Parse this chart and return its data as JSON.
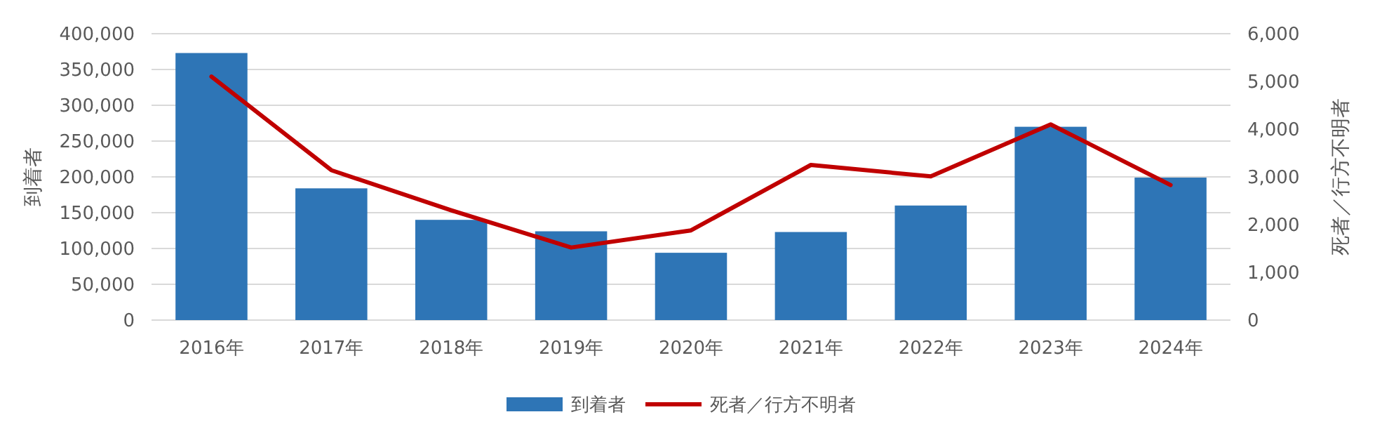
{
  "chart_data": {
    "type": "bar",
    "ylabel": "到着者",
    "y2label": "死者／行方不明者",
    "categories": [
      "2016年",
      "2017年",
      "2018年",
      "2019年",
      "2020年",
      "2021年",
      "2022年",
      "2023年",
      "2024年"
    ],
    "series": [
      {
        "name": "到着者",
        "color": "#2e75b6",
        "values": [
          373000,
          184000,
          140000,
          124000,
          94000,
          123000,
          160000,
          270000,
          199000
        ]
      },
      {
        "name": "死者／行方不明者",
        "type": "line",
        "axis": "y2",
        "color": "#c00000",
        "values": [
          5100,
          3140,
          2300,
          1520,
          1880,
          3250,
          3010,
          4100,
          2830
        ]
      }
    ],
    "ylim": [
      0,
      400000
    ],
    "yticks": [
      {
        "value": 0,
        "label": "0"
      },
      {
        "value": 50000,
        "label": "50,000"
      },
      {
        "value": 100000,
        "label": "100,000"
      },
      {
        "value": 150000,
        "label": "150,000"
      },
      {
        "value": 200000,
        "label": "200,000"
      },
      {
        "value": 250000,
        "label": "250,000"
      },
      {
        "value": 300000,
        "label": "300,000"
      },
      {
        "value": 350000,
        "label": "350,000"
      },
      {
        "value": 400000,
        "label": "400,000"
      }
    ],
    "y2lim": [
      0,
      6000
    ],
    "y2ticks": [
      {
        "value": 0,
        "label": "0"
      },
      {
        "value": 1000,
        "label": "1,000"
      },
      {
        "value": 2000,
        "label": "2,000"
      },
      {
        "value": 3000,
        "label": "3,000"
      },
      {
        "value": 4000,
        "label": "4,000"
      },
      {
        "value": 5000,
        "label": "5,000"
      },
      {
        "value": 6000,
        "label": "6,000"
      }
    ],
    "grid": "y",
    "legend": "bottom",
    "marker": "none",
    "line_style": "solid"
  }
}
